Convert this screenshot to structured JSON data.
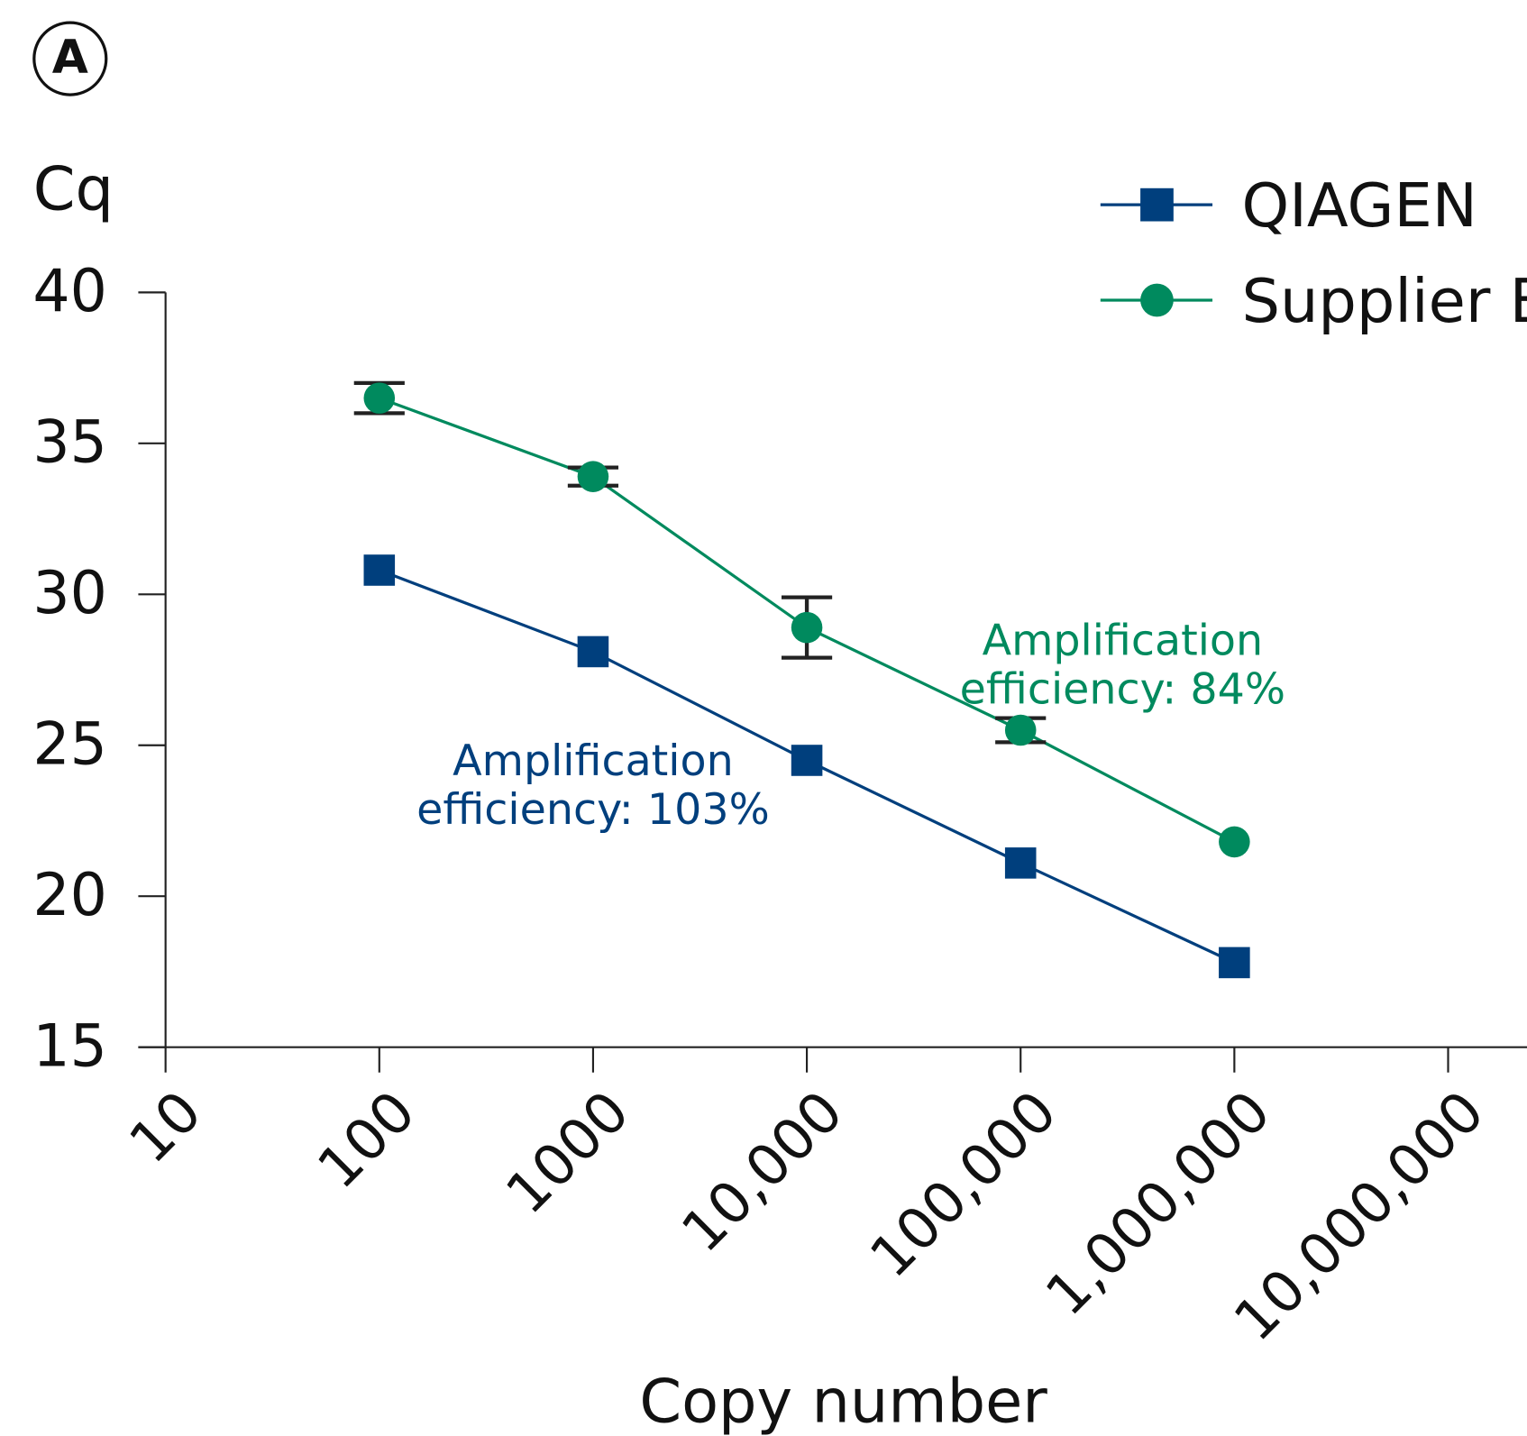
{
  "chart_data": {
    "type": "line",
    "panel_label": "A",
    "y_label": "Cq",
    "x_label": "Copy number",
    "log_x": true,
    "x": [
      100,
      1000,
      10000,
      100000,
      1000000
    ],
    "xlim": [
      10,
      10000000
    ],
    "xticks": [
      10,
      100,
      1000,
      {
        "value": 10000,
        "label": "10,000"
      },
      {
        "value": 100000,
        "label": "100,000"
      },
      {
        "value": 1000000,
        "label": "1,000,000"
      },
      {
        "value": 10000000,
        "label": "10,000,000"
      }
    ],
    "ylim": [
      15,
      40
    ],
    "yticks": [
      15,
      20,
      25,
      30,
      35,
      40
    ],
    "legend": "top-right",
    "series": [
      {
        "name": "QIAGEN",
        "color": "#003f7d",
        "marker": "square",
        "values": [
          30.8,
          28.1,
          24.5,
          21.1,
          17.8
        ]
      },
      {
        "name": "Supplier B",
        "color": "#008a5e",
        "marker": "circle",
        "values": [
          36.5,
          33.9,
          28.9,
          25.5,
          21.8
        ],
        "errors": [
          0.5,
          0.3,
          1.0,
          0.4,
          null
        ]
      }
    ],
    "annotations": [
      {
        "lines": [
          "Amplification",
          "efficiency: 103%"
        ],
        "color": "#003f7d",
        "x": 1000,
        "y": 24
      },
      {
        "lines": [
          "Amplification",
          "efficiency: 84%"
        ],
        "color": "#008a5e",
        "x": 300000,
        "y": 28
      }
    ]
  }
}
